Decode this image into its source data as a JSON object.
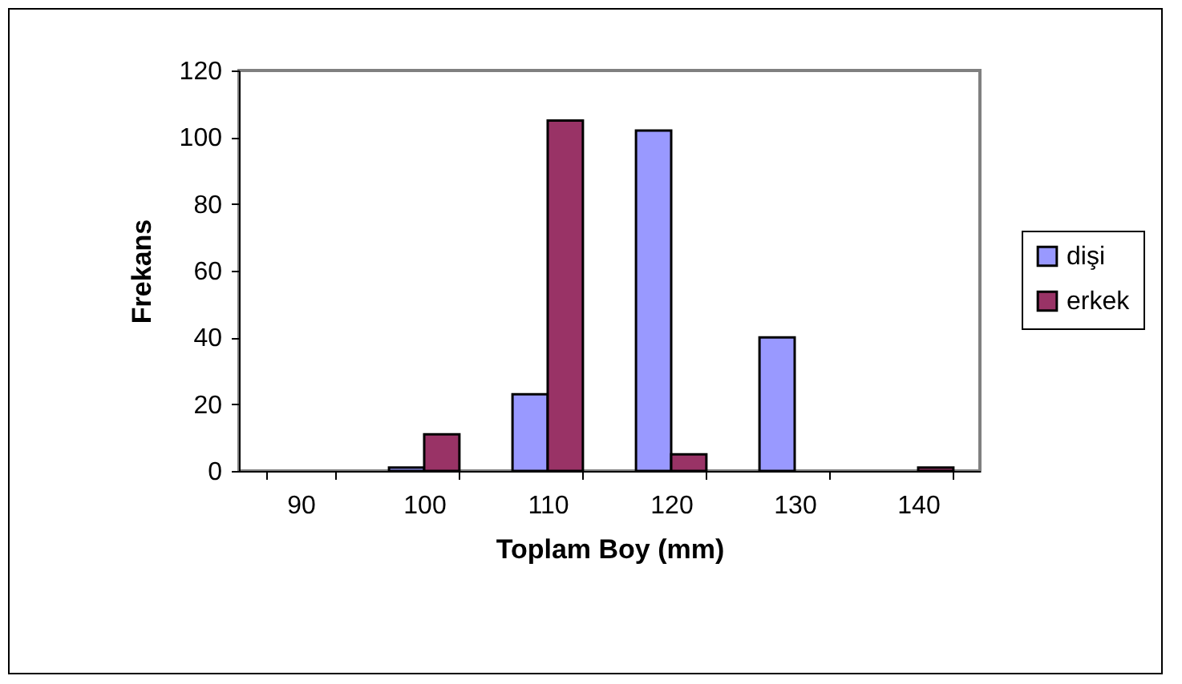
{
  "chart_data": {
    "type": "bar",
    "xlabel": "Toplam Boy (mm)",
    "ylabel": "Frekans",
    "categories": [
      "90",
      "100",
      "110",
      "120",
      "130",
      "140"
    ],
    "series": [
      {
        "name": "dişi",
        "color": "#9999ff",
        "values": [
          null,
          1,
          23,
          102,
          40,
          null
        ]
      },
      {
        "name": "erkek",
        "color": "#993366",
        "values": [
          null,
          11,
          105,
          5,
          null,
          1
        ]
      }
    ],
    "ylim": [
      0,
      120
    ],
    "yticks": [
      0,
      20,
      40,
      60,
      80,
      100,
      120
    ],
    "grid": false,
    "legend": "right"
  }
}
